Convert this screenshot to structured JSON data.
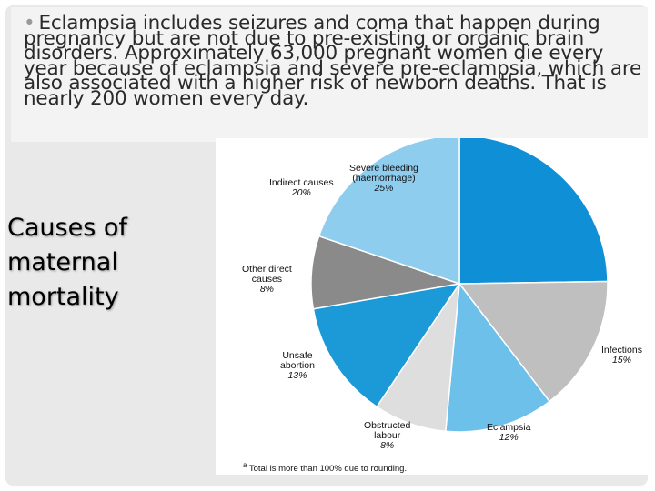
{
  "bullet": {
    "marker": "•",
    "text": "Eclampsia includes seizures and coma that happen during pregnancy but are not due to pre-existing or organic brain disorders. Approximately 63,000 pregnant women die every year because of eclampsia and severe pre-eclampsia, which are also associated with a higher risk of newborn deaths. That is nearly 200 women every day."
  },
  "side_title": {
    "line1": "Causes of",
    "line2": "maternal",
    "line3": "mortality"
  },
  "chart_data": {
    "type": "pie",
    "slices": [
      {
        "label_lines": [
          "Severe bleeding",
          "(haemorrhage)"
        ],
        "value": 25,
        "value_label": "25%",
        "color": "#0e8fd6"
      },
      {
        "label_lines": [
          "Infections"
        ],
        "value": 15,
        "value_label": "15%",
        "color": "#bfbfbf"
      },
      {
        "label_lines": [
          "Eclampsia"
        ],
        "value": 12,
        "value_label": "12%",
        "color": "#6dc0ea"
      },
      {
        "label_lines": [
          "Obstructed",
          "labour"
        ],
        "value": 8,
        "value_label": "8%",
        "color": "#dedede"
      },
      {
        "label_lines": [
          "Unsafe",
          "abortion"
        ],
        "value": 13,
        "value_label": "13%",
        "color": "#1c9ad8"
      },
      {
        "label_lines": [
          "Other direct",
          "causes"
        ],
        "value": 8,
        "value_label": "8%",
        "color": "#8a8a8a"
      },
      {
        "label_lines": [
          "Indirect causes"
        ],
        "value": 20,
        "value_label": "20%",
        "color": "#8fcdef"
      }
    ],
    "start_angle_deg": 0,
    "direction": "clockwise",
    "footnote_marker": "a",
    "footnote": "Total is more than 100% due to rounding."
  }
}
